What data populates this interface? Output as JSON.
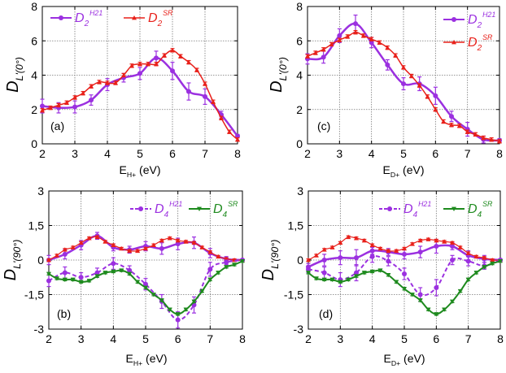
{
  "chart_data": [
    {
      "type": "line",
      "panel_label": "(a)",
      "xlabel": {
        "base": "E",
        "sub": "H+",
        "unit": " (eV)"
      },
      "ylabel": {
        "base": "D",
        "sub": "L'(0°)"
      },
      "xlim": [
        2,
        8
      ],
      "ylim": [
        0,
        8
      ],
      "xticks": [
        "2",
        "3",
        "4",
        "5",
        "6",
        "7",
        "8"
      ],
      "yticks": [
        "0",
        "2",
        "4",
        "6",
        "8"
      ],
      "grid": true,
      "legend": "top",
      "series": [
        {
          "name": {
            "base": "D",
            "sub": "2",
            "sup": "H21"
          },
          "color": "#9b30e0",
          "marker": "circle",
          "dash": false,
          "width": 2.5,
          "x": [
            2,
            2.5,
            3,
            3.5,
            4,
            4.5,
            5,
            5.5,
            6,
            6.5,
            7,
            7.5,
            8
          ],
          "y": [
            2.2,
            2.1,
            2.15,
            2.55,
            3.45,
            3.85,
            4.1,
            5.0,
            4.25,
            3.05,
            2.75,
            1.7,
            0.45
          ],
          "err": [
            0.4,
            0.3,
            0.35,
            0.3,
            0.35,
            0.25,
            0.35,
            0.4,
            0.5,
            0.5,
            0.45,
            0.2,
            0.1
          ]
        },
        {
          "name": {
            "base": "D",
            "sub": "2",
            "sup": "SR"
          },
          "color": "#e8201a",
          "marker": "triangle-up",
          "dash": false,
          "width": 1.5,
          "x": [
            2,
            2.25,
            2.5,
            2.75,
            3,
            3.25,
            3.5,
            3.75,
            4,
            4.25,
            4.5,
            4.75,
            5,
            5.25,
            5.5,
            5.75,
            6,
            6.25,
            6.5,
            6.75,
            7,
            7.25,
            7.5,
            7.75,
            8
          ],
          "y": [
            1.95,
            2.1,
            2.25,
            2.4,
            2.7,
            2.95,
            3.35,
            3.6,
            3.55,
            3.55,
            4.0,
            4.55,
            4.65,
            4.65,
            4.65,
            5.15,
            5.45,
            5.1,
            4.75,
            4.3,
            3.5,
            2.45,
            1.5,
            0.7,
            0.25
          ],
          "err": [
            0.1,
            0.1,
            0.1,
            0.1,
            0.1,
            0.1,
            0.1,
            0.1,
            0.1,
            0.1,
            0.1,
            0.1,
            0.1,
            0.1,
            0.1,
            0.1,
            0.1,
            0.1,
            0.1,
            0.1,
            0.1,
            0.1,
            0.1,
            0.1,
            0.1
          ]
        }
      ]
    },
    {
      "type": "line",
      "panel_label": "(c)",
      "xlabel": {
        "base": "E",
        "sub": "D+",
        "unit": " (eV)"
      },
      "ylabel": {
        "base": "D",
        "sub": "L'(0°)"
      },
      "xlim": [
        2,
        8
      ],
      "ylim": [
        0,
        8
      ],
      "xticks": [
        "2",
        "3",
        "4",
        "5",
        "6",
        "7",
        "8"
      ],
      "yticks": [
        "0",
        "2",
        "4",
        "6",
        "8"
      ],
      "grid": true,
      "legend": "top-right",
      "series": [
        {
          "name": {
            "base": "D",
            "sub": "2",
            "sup": "H21"
          },
          "color": "#9b30e0",
          "marker": "circle",
          "dash": false,
          "width": 2.5,
          "x": [
            2,
            2.5,
            3,
            3.5,
            4,
            4.5,
            5,
            5.5,
            6,
            6.5,
            7,
            7.5,
            8
          ],
          "y": [
            4.95,
            5.05,
            6.3,
            7.0,
            5.9,
            4.6,
            3.5,
            3.5,
            2.8,
            1.6,
            0.85,
            0.25,
            0.2
          ],
          "err": [
            0.3,
            0.35,
            0.4,
            0.5,
            0.3,
            0.3,
            0.35,
            0.4,
            0.5,
            0.3,
            0.4,
            0.2,
            0.1
          ]
        },
        {
          "name": {
            "base": "D",
            "sub": "2",
            "sup": "SR"
          },
          "color": "#e8201a",
          "marker": "triangle-up",
          "dash": false,
          "width": 1.5,
          "x": [
            2,
            2.25,
            2.5,
            2.75,
            3,
            3.25,
            3.5,
            3.75,
            4,
            4.25,
            4.5,
            4.75,
            5,
            5.25,
            5.5,
            5.75,
            6,
            6.25,
            6.5,
            6.75,
            7,
            7.25,
            7.5,
            7.75,
            8
          ],
          "y": [
            5.1,
            5.3,
            5.5,
            5.8,
            6.05,
            6.25,
            6.5,
            6.3,
            6.1,
            5.9,
            5.6,
            5.15,
            4.45,
            3.95,
            3.4,
            2.75,
            2.0,
            1.3,
            1.1,
            1.05,
            0.7,
            0.55,
            0.35,
            0.25,
            0.15
          ],
          "err": [
            0.1,
            0.1,
            0.1,
            0.1,
            0.1,
            0.1,
            0.1,
            0.1,
            0.1,
            0.1,
            0.1,
            0.1,
            0.1,
            0.1,
            0.1,
            0.1,
            0.1,
            0.1,
            0.1,
            0.1,
            0.1,
            0.1,
            0.1,
            0.1,
            0.1
          ]
        }
      ]
    },
    {
      "type": "line",
      "panel_label": "(b)",
      "xlabel": {
        "base": "E",
        "sub": "H+",
        "unit": " (eV)"
      },
      "ylabel": {
        "base": "D",
        "sub": "L'(90°)"
      },
      "xlim": [
        2,
        8
      ],
      "ylim": [
        -3,
        3
      ],
      "xticks": [
        "2",
        "3",
        "4",
        "5",
        "6",
        "7",
        "8"
      ],
      "yticks": [
        "-3",
        "-1,5",
        "0",
        "1,5",
        "3"
      ],
      "grid": true,
      "legend": "top-right",
      "series": [
        {
          "color": "#9b30e0",
          "marker": "circle",
          "dash": false,
          "width": 2.5,
          "x": [
            2,
            2.5,
            3,
            3.5,
            4,
            4.5,
            5,
            5.5,
            6,
            6.5,
            7,
            7.5,
            8
          ],
          "y": [
            0.0,
            0.25,
            0.65,
            1.05,
            0.55,
            0.45,
            0.6,
            0.5,
            0.7,
            0.75,
            0.3,
            0.05,
            0.0
          ],
          "err": [
            0.2,
            0.2,
            0.2,
            0.15,
            0.15,
            0.15,
            0.2,
            0.25,
            0.25,
            0.25,
            0.2,
            0.1,
            0.05
          ]
        },
        {
          "color": "#e8201a",
          "marker": "triangle-up",
          "dash": false,
          "width": 1.2,
          "x": [
            2,
            2.25,
            2.5,
            2.75,
            3,
            3.25,
            3.5,
            3.75,
            4,
            4.25,
            4.5,
            4.75,
            5,
            5.25,
            5.5,
            5.75,
            6,
            6.25,
            6.5,
            6.75,
            7,
            7.25,
            7.5,
            7.75,
            8
          ],
          "y": [
            0,
            0.2,
            0.45,
            0.55,
            0.75,
            0.95,
            1.0,
            0.8,
            0.65,
            0.5,
            0.4,
            0.4,
            0.5,
            0.65,
            0.85,
            0.95,
            0.85,
            0.8,
            0.75,
            0.55,
            0.35,
            0.15,
            0.05,
            0.0,
            0.0
          ],
          "err": [
            0.05,
            0.05,
            0.05,
            0.05,
            0.05,
            0.05,
            0.05,
            0.05,
            0.05,
            0.05,
            0.05,
            0.05,
            0.05,
            0.05,
            0.05,
            0.05,
            0.05,
            0.05,
            0.05,
            0.05,
            0.05,
            0.05,
            0.05,
            0.05,
            0.05
          ]
        },
        {
          "name": {
            "base": "D",
            "sub": "4",
            "sup": "H21"
          },
          "color": "#9b30e0",
          "marker": "circle",
          "dash": true,
          "width": 2,
          "x": [
            2,
            2.5,
            3,
            3.5,
            4,
            4.5,
            5,
            5.5,
            6,
            6.5,
            7,
            7.5,
            8
          ],
          "y": [
            -0.9,
            -0.55,
            -0.75,
            -0.55,
            -0.15,
            -0.45,
            -1.05,
            -1.8,
            -2.6,
            -1.95,
            -0.4,
            -0.1,
            0.0
          ],
          "err": [
            0.25,
            0.25,
            0.2,
            0.2,
            0.25,
            0.2,
            0.25,
            0.3,
            0.35,
            0.35,
            0.3,
            0.1,
            0.05
          ]
        },
        {
          "name": {
            "base": "D",
            "sub": "4",
            "sup": "SR"
          },
          "color": "#1e8a1e",
          "marker": "triangle-down",
          "dash": false,
          "width": 2,
          "x": [
            2,
            2.25,
            2.5,
            2.75,
            3,
            3.25,
            3.5,
            3.75,
            4,
            4.25,
            4.5,
            4.75,
            5,
            5.25,
            5.5,
            5.75,
            6,
            6.25,
            6.5,
            6.75,
            7,
            7.25,
            7.5,
            7.75,
            8
          ],
          "y": [
            -0.6,
            -0.8,
            -0.85,
            -0.85,
            -0.95,
            -0.9,
            -0.7,
            -0.55,
            -0.5,
            -0.45,
            -0.6,
            -0.95,
            -1.2,
            -1.5,
            -1.75,
            -2.15,
            -2.35,
            -2.15,
            -1.8,
            -1.35,
            -0.85,
            -0.55,
            -0.3,
            -0.2,
            -0.05
          ],
          "err": [
            0.05,
            0.05,
            0.05,
            0.05,
            0.05,
            0.05,
            0.05,
            0.05,
            0.05,
            0.05,
            0.05,
            0.05,
            0.05,
            0.05,
            0.05,
            0.05,
            0.05,
            0.05,
            0.05,
            0.05,
            0.05,
            0.05,
            0.05,
            0.05,
            0.05
          ]
        }
      ]
    },
    {
      "type": "line",
      "panel_label": "(d)",
      "xlabel": {
        "base": "E",
        "sub": "D+",
        "unit": " (eV)"
      },
      "ylabel": {
        "base": "D",
        "sub": "L'(90°)"
      },
      "xlim": [
        2,
        8
      ],
      "ylim": [
        -3,
        3
      ],
      "xticks": [
        "2",
        "3",
        "4",
        "5",
        "6",
        "7",
        "8"
      ],
      "yticks": [
        "-3",
        "-1,5",
        "0",
        "1,5",
        "3"
      ],
      "grid": true,
      "legend": "top-right",
      "series": [
        {
          "color": "#9b30e0",
          "marker": "circle",
          "dash": false,
          "width": 2.5,
          "x": [
            2,
            2.5,
            3,
            3.5,
            4,
            4.5,
            5,
            5.5,
            6,
            6.5,
            7,
            7.5,
            8
          ],
          "y": [
            -0.3,
            0.0,
            0.1,
            0.1,
            0.4,
            0.35,
            0.25,
            0.35,
            0.6,
            0.6,
            0.2,
            0.05,
            0.0
          ],
          "err": [
            0.15,
            0.25,
            0.3,
            0.35,
            0.15,
            0.15,
            0.2,
            0.25,
            0.3,
            0.15,
            0.2,
            0.15,
            0.05
          ]
        },
        {
          "color": "#e8201a",
          "marker": "triangle-up",
          "dash": false,
          "width": 1.2,
          "x": [
            2,
            2.25,
            2.5,
            2.75,
            3,
            3.25,
            3.5,
            3.75,
            4,
            4.25,
            4.5,
            4.75,
            5,
            5.25,
            5.5,
            5.75,
            6,
            6.25,
            6.5,
            6.75,
            7,
            7.25,
            7.5,
            7.75,
            8
          ],
          "y": [
            0,
            0.2,
            0.45,
            0.55,
            0.75,
            1.0,
            0.95,
            0.85,
            0.65,
            0.5,
            0.4,
            0.4,
            0.5,
            0.7,
            0.85,
            0.9,
            0.85,
            0.8,
            0.75,
            0.55,
            0.3,
            0.15,
            0.1,
            0.0,
            0.0
          ],
          "err": [
            0.05,
            0.05,
            0.05,
            0.05,
            0.05,
            0.05,
            0.05,
            0.05,
            0.05,
            0.05,
            0.05,
            0.05,
            0.05,
            0.05,
            0.05,
            0.05,
            0.05,
            0.05,
            0.05,
            0.05,
            0.05,
            0.05,
            0.05,
            0.05,
            0.05
          ]
        },
        {
          "name": {
            "base": "D",
            "sub": "4",
            "sup": "H21"
          },
          "color": "#9b30e0",
          "marker": "circle",
          "dash": true,
          "width": 2,
          "x": [
            2,
            2.5,
            3,
            3.5,
            4,
            4.5,
            5,
            5.5,
            6,
            6.5,
            7,
            7.5,
            8
          ],
          "y": [
            -0.4,
            -0.55,
            -0.85,
            -0.55,
            0.15,
            -0.05,
            -0.6,
            -1.5,
            -1.2,
            0.0,
            -0.05,
            -0.25,
            0.0
          ],
          "err": [
            0.15,
            0.25,
            0.3,
            0.35,
            0.25,
            0.2,
            0.25,
            0.3,
            0.35,
            0.2,
            0.2,
            0.15,
            0.05
          ]
        },
        {
          "name": {
            "base": "D",
            "sub": "4",
            "sup": "SR"
          },
          "color": "#1e8a1e",
          "marker": "triangle-down",
          "dash": false,
          "width": 2,
          "x": [
            2,
            2.25,
            2.5,
            2.75,
            3,
            3.25,
            3.5,
            3.75,
            4,
            4.25,
            4.5,
            4.75,
            5,
            5.25,
            5.5,
            5.75,
            6,
            6.25,
            6.5,
            6.75,
            7,
            7.25,
            7.5,
            7.75,
            8
          ],
          "y": [
            -0.55,
            -0.8,
            -0.85,
            -0.85,
            -0.95,
            -0.85,
            -0.7,
            -0.55,
            -0.5,
            -0.45,
            -0.65,
            -0.95,
            -1.25,
            -1.5,
            -1.75,
            -2.15,
            -2.35,
            -2.15,
            -1.8,
            -1.35,
            -0.85,
            -0.55,
            -0.3,
            -0.15,
            -0.05
          ],
          "err": [
            0.05,
            0.05,
            0.05,
            0.05,
            0.05,
            0.05,
            0.05,
            0.05,
            0.05,
            0.05,
            0.05,
            0.05,
            0.05,
            0.05,
            0.05,
            0.05,
            0.05,
            0.05,
            0.05,
            0.05,
            0.05,
            0.05,
            0.05,
            0.05,
            0.05
          ]
        }
      ]
    }
  ]
}
